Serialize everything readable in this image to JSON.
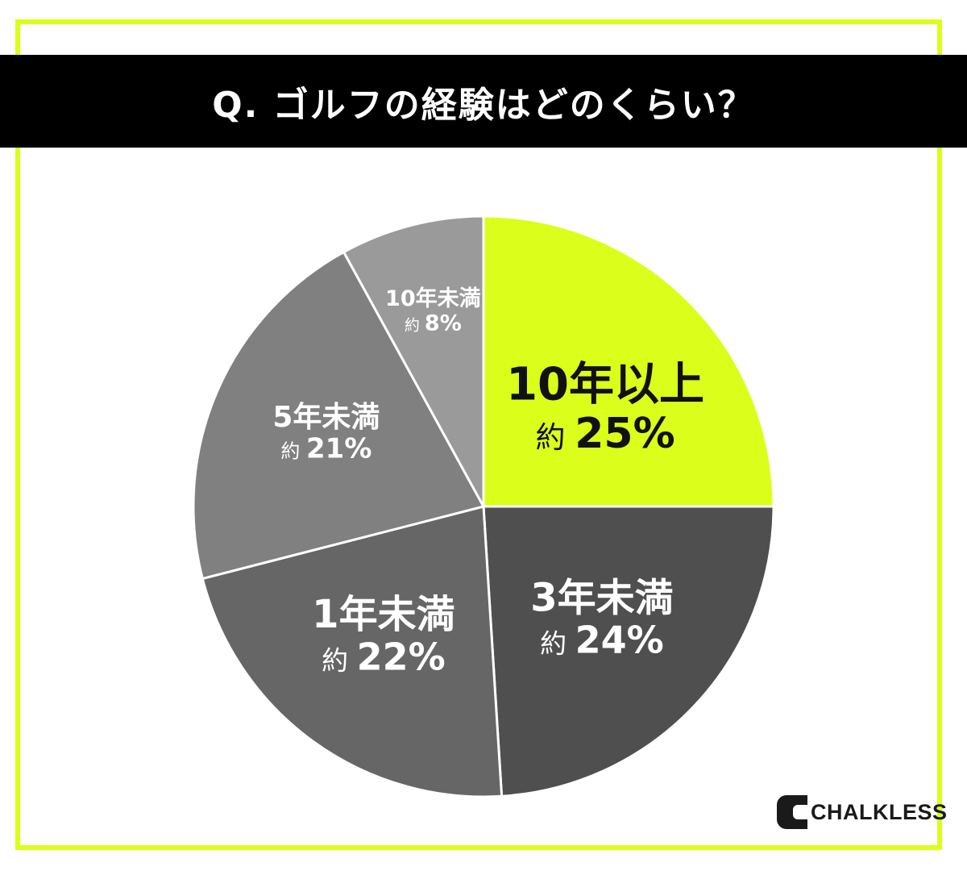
{
  "title": "Q. ゴルフの経験はどのくらい？",
  "colors": {
    "accent": "#dbff1a",
    "title_bg": "#000000",
    "title_text": "#ffffff",
    "divider": "#ffffff"
  },
  "chart_data": {
    "type": "pie",
    "title": "Q. ゴルフの経験はどのくらい？",
    "start": "12 o'clock",
    "direction": "clockwise",
    "slices": [
      {
        "label": "10年以上",
        "value_label": "約 25%",
        "value": 25,
        "color": "#dbff1a",
        "text_color": "#111111"
      },
      {
        "label": "3年未満",
        "value_label": "約 24%",
        "value": 24,
        "color": "#4f4f4f",
        "text_color": "#ffffff"
      },
      {
        "label": "1年未満",
        "value_label": "約 22%",
        "value": 22,
        "color": "#666666",
        "text_color": "#ffffff"
      },
      {
        "label": "5年未満",
        "value_label": "約 21%",
        "value": 21,
        "color": "#808080",
        "text_color": "#ffffff"
      },
      {
        "label": "10年未満",
        "value_label": "約 8%",
        "value": 8,
        "color": "#9a9a9a",
        "text_color": "#ffffff"
      }
    ]
  },
  "logo": {
    "text": "CHALKLESS",
    "icon": "chalkless-logo-icon"
  }
}
